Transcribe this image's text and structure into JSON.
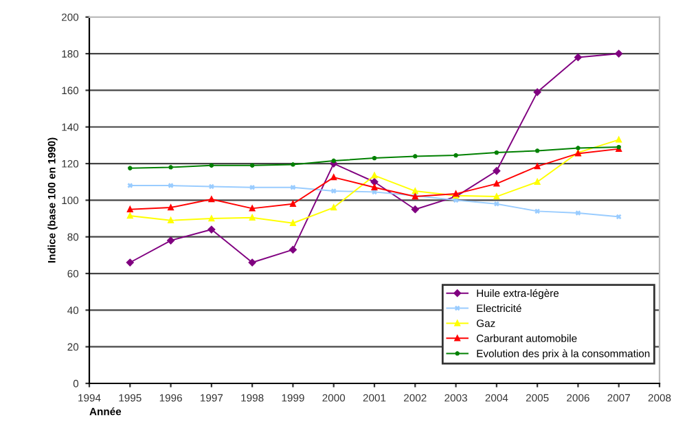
{
  "chart_data": {
    "type": "line",
    "xlabel": "Année",
    "ylabel": "Indice (base 100 en 1990)",
    "x": [
      1995,
      1996,
      1997,
      1998,
      1999,
      2000,
      2001,
      2002,
      2003,
      2004,
      2005,
      2006,
      2007
    ],
    "series": [
      {
        "name": "Huile extra-légère",
        "color": "#800080",
        "marker": "diamond",
        "values": [
          66,
          78,
          84,
          66,
          73,
          120,
          110,
          95,
          102,
          116,
          159,
          178,
          180
        ]
      },
      {
        "name": "Electricité",
        "color": "#99ccff",
        "marker": "cross",
        "values": [
          108,
          108,
          107.5,
          107,
          107,
          105,
          104.5,
          102.5,
          100,
          98,
          94,
          93,
          91
        ]
      },
      {
        "name": "Gaz",
        "color": "#ffff00",
        "marker": "triangle",
        "values": [
          91.5,
          89,
          90,
          90.5,
          87.5,
          96,
          113.5,
          105,
          102.5,
          102,
          110,
          126,
          133
        ]
      },
      {
        "name": "Carburant automobile",
        "color": "#ff0000",
        "marker": "triangle",
        "values": [
          95,
          96,
          100.5,
          95.5,
          98,
          112.5,
          107,
          102,
          103.5,
          109,
          118.5,
          125.5,
          128
        ]
      },
      {
        "name": "Evolution des prix à la consommation",
        "color": "#008000",
        "marker": "star",
        "values": [
          117.5,
          118,
          119,
          119,
          119.5,
          121.5,
          123,
          124,
          124.5,
          126,
          127,
          128.5,
          129
        ]
      }
    ],
    "xlim": [
      1994,
      2008
    ],
    "xticks": [
      1994,
      1995,
      1996,
      1997,
      1998,
      1999,
      2000,
      2001,
      2002,
      2003,
      2004,
      2005,
      2006,
      2007,
      2008
    ],
    "ylim": [
      0,
      200
    ],
    "yticks": [
      0,
      20,
      40,
      60,
      80,
      100,
      120,
      140,
      160,
      180,
      200
    ],
    "grid": "y",
    "legend": "bottom right",
    "line_style": "solid"
  }
}
